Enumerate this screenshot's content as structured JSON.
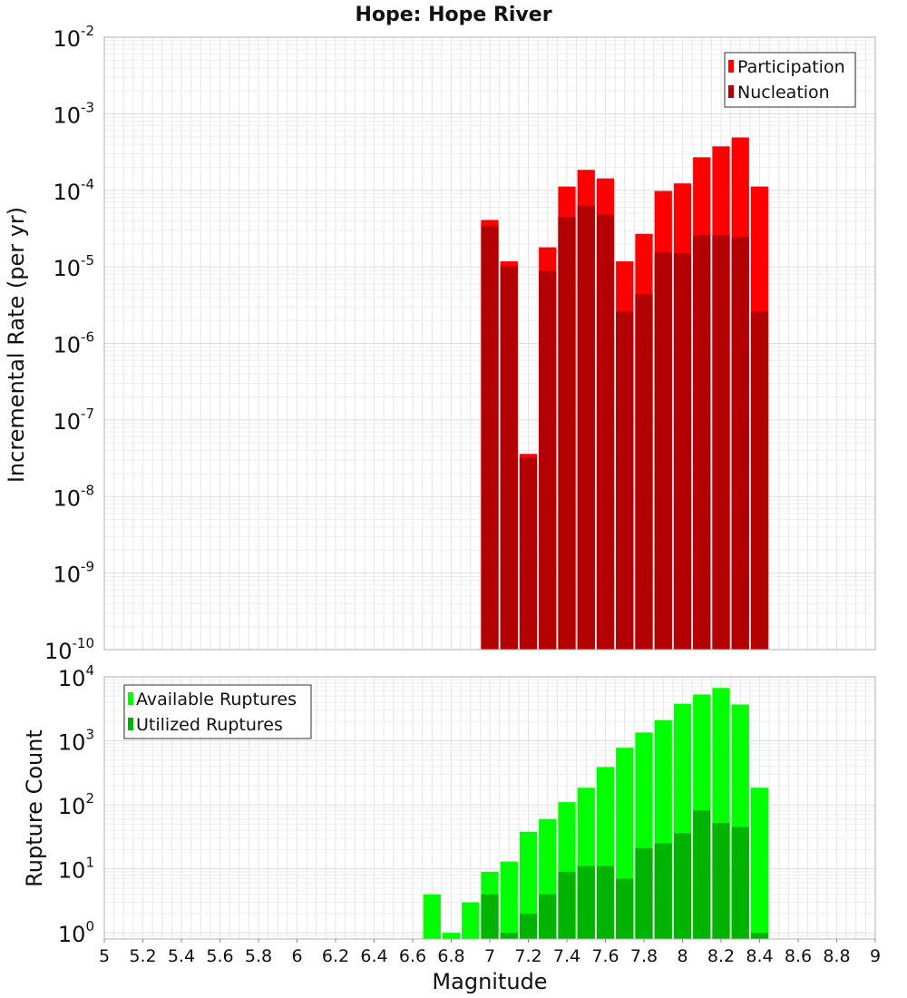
{
  "title": "Hope: Hope River",
  "colors": {
    "participation": "#ff0000",
    "nucleation": "#b30000",
    "available": "#00ff00",
    "utilized": "#00b300",
    "grid": "#e6e6e6",
    "frame": "#b0b0b0"
  },
  "chart_data": [
    {
      "type": "bar",
      "panel": "top",
      "ylabel": "Incremental Rate (per yr)",
      "yscale": "log",
      "ylim": [
        1e-10,
        0.01
      ],
      "xlim": [
        5,
        9
      ],
      "bar_width": 0.1,
      "legend_position": "top-right",
      "y_ticks": [
        {
          "base": "10",
          "exp": "-10"
        },
        {
          "base": "10",
          "exp": "-9"
        },
        {
          "base": "10",
          "exp": "-8"
        },
        {
          "base": "10",
          "exp": "-7"
        },
        {
          "base": "10",
          "exp": "-6"
        },
        {
          "base": "10",
          "exp": "-5"
        },
        {
          "base": "10",
          "exp": "-4"
        },
        {
          "base": "10",
          "exp": "-3"
        },
        {
          "base": "10",
          "exp": "-2"
        }
      ],
      "x": [
        7.0,
        7.1,
        7.2,
        7.3,
        7.4,
        7.5,
        7.6,
        7.7,
        7.8,
        7.9,
        8.0,
        8.1,
        8.2,
        8.3,
        8.4
      ],
      "series": [
        {
          "name": "Participation",
          "values": [
            4.1e-05,
            1.18e-05,
            3.6e-08,
            1.8e-05,
            0.000112,
            0.000185,
            0.000143,
            1.18e-05,
            2.7e-05,
            9.8e-05,
            0.000123,
            0.00027,
            0.000375,
            0.00049,
            0.000112
          ]
        },
        {
          "name": "Nucleation",
          "values": [
            3.4e-05,
            1.03e-05,
            3.2e-08,
            8.8e-06,
            4.5e-05,
            6.3e-05,
            4.8e-05,
            2.6e-06,
            4.4e-06,
            1.55e-05,
            1.5e-05,
            2.6e-05,
            2.6e-05,
            2.45e-05,
            2.6e-06
          ]
        }
      ]
    },
    {
      "type": "bar",
      "panel": "bottom",
      "xlabel": "Magnitude",
      "ylabel": "Rupture Count",
      "yscale": "log",
      "ylim": [
        0.8,
        10000
      ],
      "xlim": [
        5,
        9
      ],
      "bar_width": 0.1,
      "legend_position": "top-left",
      "y_ticks": [
        {
          "value": 1,
          "base": "10",
          "exp": "0"
        },
        {
          "value": 10,
          "base": "10",
          "exp": "1"
        },
        {
          "value": 100,
          "base": "10",
          "exp": "2"
        },
        {
          "value": 1000,
          "base": "10",
          "exp": "3"
        },
        {
          "value": 10000,
          "base": "10",
          "exp": "4"
        }
      ],
      "x_ticks": [
        "5",
        "5.2",
        "5.4",
        "5.6",
        "5.8",
        "6",
        "6.2",
        "6.4",
        "6.6",
        "6.8",
        "7",
        "7.2",
        "7.4",
        "7.6",
        "7.8",
        "8",
        "8.2",
        "8.4",
        "8.6",
        "8.8",
        "9"
      ],
      "x": [
        6.7,
        6.8,
        6.9,
        7.0,
        7.1,
        7.2,
        7.3,
        7.4,
        7.5,
        7.6,
        7.7,
        7.8,
        7.9,
        8.0,
        8.1,
        8.2,
        8.3,
        8.4
      ],
      "series": [
        {
          "name": "Available Ruptures",
          "values": [
            4,
            1,
            3,
            9,
            13,
            38,
            60,
            110,
            185,
            390,
            780,
            1350,
            2100,
            3800,
            5300,
            6700,
            3700,
            185
          ]
        },
        {
          "name": "Utilized Ruptures",
          "values": [
            0,
            0,
            0,
            4,
            1,
            2,
            4,
            9,
            11,
            11,
            7,
            21,
            25,
            36,
            82,
            52,
            45,
            1
          ]
        }
      ]
    }
  ]
}
